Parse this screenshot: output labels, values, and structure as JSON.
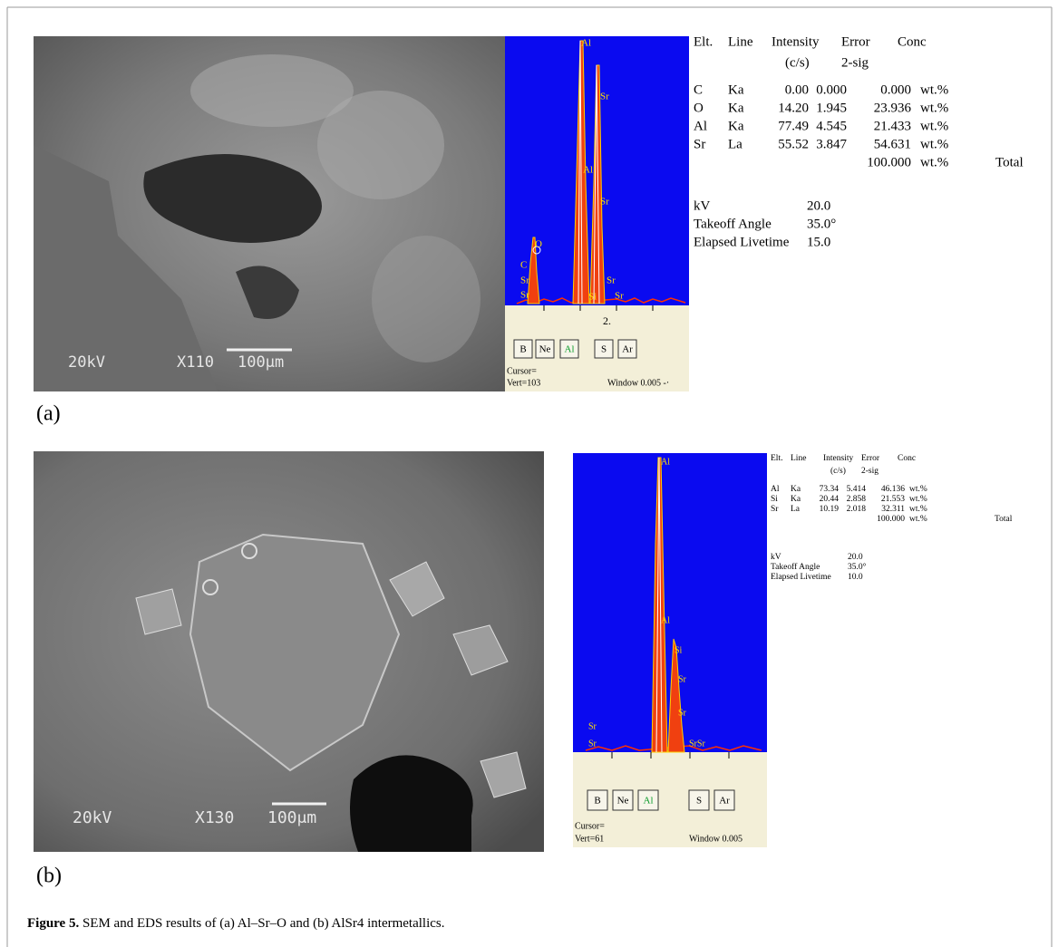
{
  "panels": [
    {
      "label": "(a)",
      "sem": {
        "voltage": "20kV",
        "magnification": "X110",
        "scale": "100μm"
      },
      "spectrum": {
        "peak_labels": [
          "Al",
          "Sr",
          "Al",
          "Sr",
          "O",
          "C",
          "Sr",
          "Sr",
          "Si",
          "Sr",
          "Sr"
        ],
        "axis_label": "2.",
        "buttons": [
          "B",
          "Ne",
          "Al",
          "S",
          "Ar"
        ],
        "cursor": "Cursor=",
        "vert": "Vert=103",
        "window": "Window 0.005 -·"
      },
      "table": {
        "header": [
          "Elt.",
          "Line",
          "Intensity",
          "Error",
          "Conc"
        ],
        "header_units": [
          "(c/s)",
          "2-sig"
        ],
        "rows": [
          [
            "C",
            "Ka",
            "0.00",
            "0.000",
            "0.000",
            "wt.%"
          ],
          [
            "O",
            "Ka",
            "14.20",
            "1.945",
            "23.936",
            "wt.%"
          ],
          [
            "Al",
            "Ka",
            "77.49",
            "4.545",
            "21.433",
            "wt.%"
          ],
          [
            "Sr",
            "La",
            "55.52",
            "3.847",
            "54.631",
            "wt.%"
          ]
        ],
        "total": [
          "100.000",
          "wt.%",
          "Total"
        ],
        "params": [
          [
            "kV",
            "20.0"
          ],
          [
            "Takeoff Angle",
            "35.0°"
          ],
          [
            "Elapsed Livetime",
            "15.0"
          ]
        ]
      }
    },
    {
      "label": "(b)",
      "sem": {
        "voltage": "20kV",
        "magnification": "X130",
        "scale": "100μm"
      },
      "spectrum": {
        "peak_labels": [
          "Al",
          "Al",
          "Si",
          "Sr",
          "Sr",
          "Sr",
          "Sr",
          "SrSr"
        ],
        "axis_label": null,
        "buttons": [
          "B",
          "Ne",
          "Al",
          "S",
          "Ar"
        ],
        "cursor": "Cursor=",
        "vert": "Vert=61",
        "window": "Window 0.005"
      },
      "table": {
        "header": [
          "Elt.",
          "Line",
          "Intensity",
          "Error",
          "Conc"
        ],
        "header_units": [
          "(c/s)",
          "2-sig"
        ],
        "rows": [
          [
            "Al",
            "Ka",
            "73.34",
            "5.414",
            "46.136",
            "wt.%"
          ],
          [
            "Si",
            "Ka",
            "20.44",
            "2.858",
            "21.553",
            "wt.%"
          ],
          [
            "Sr",
            "La",
            "10.19",
            "2.018",
            "32.311",
            "wt.%"
          ]
        ],
        "total": [
          "100.000",
          "wt.%",
          "Total"
        ],
        "params": [
          [
            "kV",
            "20.0"
          ],
          [
            "Takeoff Angle",
            "35.0°"
          ],
          [
            "Elapsed Livetime",
            "10.0"
          ]
        ]
      }
    }
  ],
  "caption": {
    "label": "Figure 5.",
    "text": " SEM and EDS results of (a) Al–Sr–O and (b) AlSr4 intermetallics."
  }
}
